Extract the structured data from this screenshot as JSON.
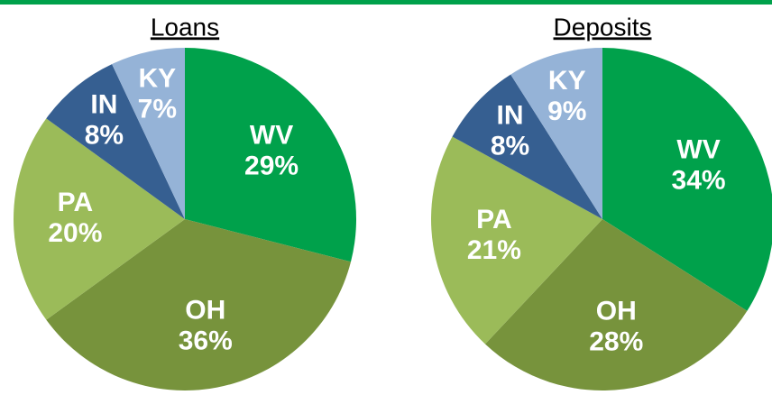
{
  "chart_data": [
    {
      "type": "pie",
      "title": "Loans",
      "categories": [
        "WV",
        "OH",
        "PA",
        "IN",
        "KY"
      ],
      "values": [
        29,
        36,
        20,
        8,
        7
      ],
      "value_labels": [
        "29%",
        "36%",
        "20%",
        "8%",
        "7%"
      ],
      "colors": [
        "#00a14b",
        "#77933c",
        "#9bbb59",
        "#365f91",
        "#95b3d7"
      ]
    },
    {
      "type": "pie",
      "title": "Deposits",
      "categories": [
        "WV",
        "OH",
        "PA",
        "IN",
        "KY"
      ],
      "values": [
        34,
        28,
        21,
        8,
        9
      ],
      "value_labels": [
        "34%",
        "28%",
        "21%",
        "8%",
        "9%"
      ],
      "colors": [
        "#00a14b",
        "#77933c",
        "#9bbb59",
        "#365f91",
        "#95b3d7"
      ]
    }
  ]
}
